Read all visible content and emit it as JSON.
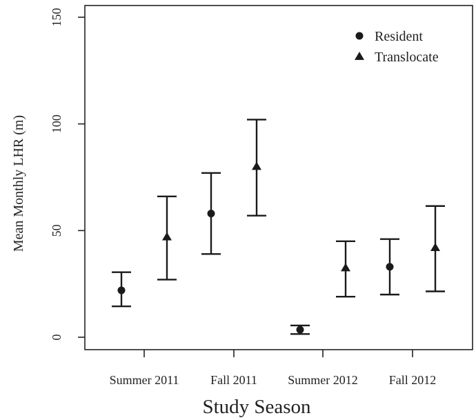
{
  "chart_data": {
    "type": "scatter",
    "xlabel": "Study Season",
    "ylabel": "Mean Monthly LHR (m)",
    "ylim": [
      0,
      150
    ],
    "yticks": [
      0,
      50,
      100,
      150
    ],
    "categories": [
      "Summer 2011",
      "Fall 2011",
      "Summer 2012",
      "Fall 2012"
    ],
    "grid": false,
    "legend_position": "top-right",
    "series": [
      {
        "name": "Resident",
        "marker": "circle",
        "values": [
          22,
          58,
          3.5,
          33
        ],
        "lower": [
          14.5,
          39,
          1.5,
          20
        ],
        "upper": [
          30.5,
          77,
          5.5,
          46
        ]
      },
      {
        "name": "Translocate",
        "marker": "triangle",
        "values": [
          47,
          80,
          32.5,
          42
        ],
        "lower": [
          27,
          57,
          19,
          21.5
        ],
        "upper": [
          66,
          102,
          45,
          61.5
        ]
      }
    ]
  }
}
